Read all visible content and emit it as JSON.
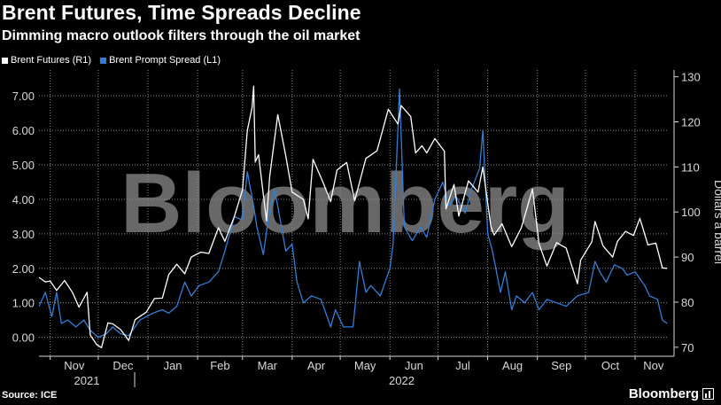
{
  "header": {
    "title": "Brent Futures, Time Spreads Decline",
    "subtitle": "Dimming macro outlook filters through the oil market"
  },
  "legend": {
    "items": [
      {
        "label": "Brent Futures (R1)",
        "color": "#ffffff"
      },
      {
        "label": "Brent Prompt Spread (L1)",
        "color": "#2f7fd8"
      }
    ]
  },
  "footer": {
    "source": "Source: ICE",
    "brand": "Bloomberg",
    "watermark": "Bloomberg"
  },
  "chart_data": {
    "type": "line",
    "x_months": [
      "Nov",
      "Dec",
      "Jan",
      "Feb",
      "Mar",
      "Apr",
      "May",
      "Jun",
      "Jul",
      "Aug",
      "Sep",
      "Oct",
      "Nov"
    ],
    "x_years": [
      "2021",
      "2022"
    ],
    "ylabel_right": "Dollars a barrel",
    "yleft": {
      "ticks": [
        "0.00",
        "1.00",
        "2.00",
        "3.00",
        "4.00",
        "5.00",
        "6.00",
        "7.00"
      ],
      "range": [
        -0.55,
        7.75
      ]
    },
    "yright": {
      "ticks": [
        "70",
        "80",
        "90",
        "100",
        "110",
        "120",
        "130"
      ],
      "range": [
        68,
        131.5
      ]
    },
    "grid": true,
    "legend_position": "top-left",
    "series": [
      {
        "name": "Brent Futures (R1)",
        "axis": "right",
        "color": "#ffffff",
        "points": [
          [
            "2021-10-25",
            85.5
          ],
          [
            "2021-10-29",
            84.5
          ],
          [
            "2021-11-01",
            84.7
          ],
          [
            "2021-11-05",
            82.6
          ],
          [
            "2021-11-10",
            84.8
          ],
          [
            "2021-11-15",
            82.1
          ],
          [
            "2021-11-19",
            78.9
          ],
          [
            "2021-11-24",
            82.2
          ],
          [
            "2021-11-26",
            72.7
          ],
          [
            "2021-11-30",
            70.6
          ],
          [
            "2021-12-03",
            69.9
          ],
          [
            "2021-12-07",
            75.4
          ],
          [
            "2021-12-10",
            75.2
          ],
          [
            "2021-12-15",
            73.9
          ],
          [
            "2021-12-20",
            71.5
          ],
          [
            "2021-12-24",
            76.1
          ],
          [
            "2021-12-31",
            77.8
          ],
          [
            "2022-01-05",
            80.8
          ],
          [
            "2022-01-10",
            80.9
          ],
          [
            "2022-01-14",
            86.1
          ],
          [
            "2022-01-19",
            88.4
          ],
          [
            "2022-01-24",
            86.3
          ],
          [
            "2022-01-28",
            90.0
          ],
          [
            "2022-02-03",
            91.1
          ],
          [
            "2022-02-08",
            90.8
          ],
          [
            "2022-02-14",
            96.5
          ],
          [
            "2022-02-18",
            93.5
          ],
          [
            "2022-02-24",
            99.1
          ],
          [
            "2022-03-01",
            104.9
          ],
          [
            "2022-03-04",
            118.1
          ],
          [
            "2022-03-07",
            123.2
          ],
          [
            "2022-03-08",
            127.9
          ],
          [
            "2022-03-09",
            111.1
          ],
          [
            "2022-03-11",
            112.7
          ],
          [
            "2022-03-16",
            98.0
          ],
          [
            "2022-03-18",
            107.9
          ],
          [
            "2022-03-23",
            121.6
          ],
          [
            "2022-03-28",
            112.5
          ],
          [
            "2022-04-01",
            104.4
          ],
          [
            "2022-04-08",
            102.8
          ],
          [
            "2022-04-11",
            98.5
          ],
          [
            "2022-04-14",
            111.7
          ],
          [
            "2022-04-20",
            106.8
          ],
          [
            "2022-04-25",
            102.3
          ],
          [
            "2022-04-29",
            109.3
          ],
          [
            "2022-05-05",
            111.0
          ],
          [
            "2022-05-10",
            102.5
          ],
          [
            "2022-05-17",
            111.9
          ],
          [
            "2022-05-20",
            112.6
          ],
          [
            "2022-05-24",
            113.6
          ],
          [
            "2022-05-31",
            122.8
          ],
          [
            "2022-06-06",
            119.5
          ],
          [
            "2022-06-08",
            123.6
          ],
          [
            "2022-06-14",
            121.2
          ],
          [
            "2022-06-17",
            113.1
          ],
          [
            "2022-06-21",
            114.7
          ],
          [
            "2022-06-24",
            113.1
          ],
          [
            "2022-06-29",
            116.3
          ],
          [
            "2022-07-05",
            113.5
          ],
          [
            "2022-07-06",
            100.7
          ],
          [
            "2022-07-11",
            106.1
          ],
          [
            "2022-07-14",
            99.1
          ],
          [
            "2022-07-20",
            106.9
          ],
          [
            "2022-07-26",
            104.4
          ],
          [
            "2022-07-29",
            110.0
          ],
          [
            "2022-08-03",
            96.8
          ],
          [
            "2022-08-05",
            94.9
          ],
          [
            "2022-08-10",
            97.4
          ],
          [
            "2022-08-16",
            92.3
          ],
          [
            "2022-08-22",
            96.5
          ],
          [
            "2022-08-29",
            105.1
          ],
          [
            "2022-09-02",
            93.0
          ],
          [
            "2022-09-07",
            88.0
          ],
          [
            "2022-09-13",
            93.2
          ],
          [
            "2022-09-19",
            92.0
          ],
          [
            "2022-09-26",
            84.1
          ],
          [
            "2022-09-28",
            89.3
          ],
          [
            "2022-10-05",
            93.4
          ],
          [
            "2022-10-07",
            97.9
          ],
          [
            "2022-10-12",
            92.5
          ],
          [
            "2022-10-18",
            90.0
          ],
          [
            "2022-10-21",
            93.5
          ],
          [
            "2022-10-26",
            95.7
          ],
          [
            "2022-10-31",
            94.8
          ],
          [
            "2022-11-04",
            98.6
          ],
          [
            "2022-11-09",
            92.7
          ],
          [
            "2022-11-14",
            93.1
          ],
          [
            "2022-11-18",
            87.6
          ],
          [
            "2022-11-21",
            87.5
          ]
        ]
      },
      {
        "name": "Brent Prompt Spread (L1)",
        "axis": "left",
        "color": "#2f7fd8",
        "points": [
          [
            "2021-10-25",
            0.9
          ],
          [
            "2021-10-29",
            1.3
          ],
          [
            "2021-11-02",
            0.6
          ],
          [
            "2021-11-05",
            1.3
          ],
          [
            "2021-11-08",
            0.4
          ],
          [
            "2021-11-12",
            0.5
          ],
          [
            "2021-11-17",
            0.3
          ],
          [
            "2021-11-22",
            0.5
          ],
          [
            "2021-11-26",
            0.2
          ],
          [
            "2021-12-01",
            0.0
          ],
          [
            "2021-12-06",
            0.1
          ],
          [
            "2021-12-10",
            0.3
          ],
          [
            "2021-12-15",
            0.1
          ],
          [
            "2021-12-20",
            0.05
          ],
          [
            "2021-12-27",
            0.5
          ],
          [
            "2021-12-31",
            0.6
          ],
          [
            "2022-01-04",
            0.7
          ],
          [
            "2022-01-10",
            0.8
          ],
          [
            "2022-01-14",
            0.7
          ],
          [
            "2022-01-19",
            0.9
          ],
          [
            "2022-01-24",
            1.6
          ],
          [
            "2022-01-28",
            1.2
          ],
          [
            "2022-02-02",
            1.5
          ],
          [
            "2022-02-08",
            1.6
          ],
          [
            "2022-02-14",
            1.9
          ],
          [
            "2022-02-18",
            2.5
          ],
          [
            "2022-02-24",
            3.5
          ],
          [
            "2022-03-01",
            3.4
          ],
          [
            "2022-03-04",
            4.8
          ],
          [
            "2022-03-08",
            3.8
          ],
          [
            "2022-03-10",
            3.2
          ],
          [
            "2022-03-14",
            2.4
          ],
          [
            "2022-03-17",
            3.4
          ],
          [
            "2022-03-21",
            4.3
          ],
          [
            "2022-03-23",
            3.8
          ],
          [
            "2022-03-28",
            2.5
          ],
          [
            "2022-04-01",
            2.7
          ],
          [
            "2022-04-04",
            1.6
          ],
          [
            "2022-04-08",
            1.0
          ],
          [
            "2022-04-13",
            1.2
          ],
          [
            "2022-04-19",
            1.1
          ],
          [
            "2022-04-25",
            0.3
          ],
          [
            "2022-04-28",
            0.8
          ],
          [
            "2022-05-03",
            0.3
          ],
          [
            "2022-05-09",
            0.3
          ],
          [
            "2022-05-13",
            2.2
          ],
          [
            "2022-05-17",
            1.3
          ],
          [
            "2022-05-20",
            1.5
          ],
          [
            "2022-05-26",
            1.2
          ],
          [
            "2022-06-01",
            2.0
          ],
          [
            "2022-06-03",
            2.7
          ],
          [
            "2022-06-07",
            7.2
          ],
          [
            "2022-06-10",
            3.2
          ],
          [
            "2022-06-15",
            2.8
          ],
          [
            "2022-06-20",
            3.2
          ],
          [
            "2022-06-24",
            2.9
          ],
          [
            "2022-06-29",
            4.0
          ],
          [
            "2022-07-04",
            4.5
          ],
          [
            "2022-07-08",
            3.8
          ],
          [
            "2022-07-12",
            4.1
          ],
          [
            "2022-07-18",
            3.6
          ],
          [
            "2022-07-22",
            4.3
          ],
          [
            "2022-07-27",
            4.9
          ],
          [
            "2022-07-29",
            6.0
          ],
          [
            "2022-08-01",
            3.0
          ],
          [
            "2022-08-04",
            2.5
          ],
          [
            "2022-08-09",
            1.3
          ],
          [
            "2022-08-12",
            1.9
          ],
          [
            "2022-08-16",
            0.8
          ],
          [
            "2022-08-19",
            1.2
          ],
          [
            "2022-08-24",
            1.0
          ],
          [
            "2022-08-29",
            1.3
          ],
          [
            "2022-09-02",
            0.8
          ],
          [
            "2022-09-07",
            1.1
          ],
          [
            "2022-09-13",
            1.0
          ],
          [
            "2022-09-19",
            0.9
          ],
          [
            "2022-09-26",
            1.2
          ],
          [
            "2022-10-03",
            1.3
          ],
          [
            "2022-10-07",
            2.2
          ],
          [
            "2022-10-10",
            1.9
          ],
          [
            "2022-10-14",
            1.6
          ],
          [
            "2022-10-19",
            2.1
          ],
          [
            "2022-10-24",
            2.0
          ],
          [
            "2022-10-27",
            1.8
          ],
          [
            "2022-11-01",
            1.9
          ],
          [
            "2022-11-07",
            1.5
          ],
          [
            "2022-11-10",
            1.2
          ],
          [
            "2022-11-15",
            1.1
          ],
          [
            "2022-11-18",
            0.5
          ],
          [
            "2022-11-21",
            0.4
          ]
        ]
      }
    ]
  }
}
